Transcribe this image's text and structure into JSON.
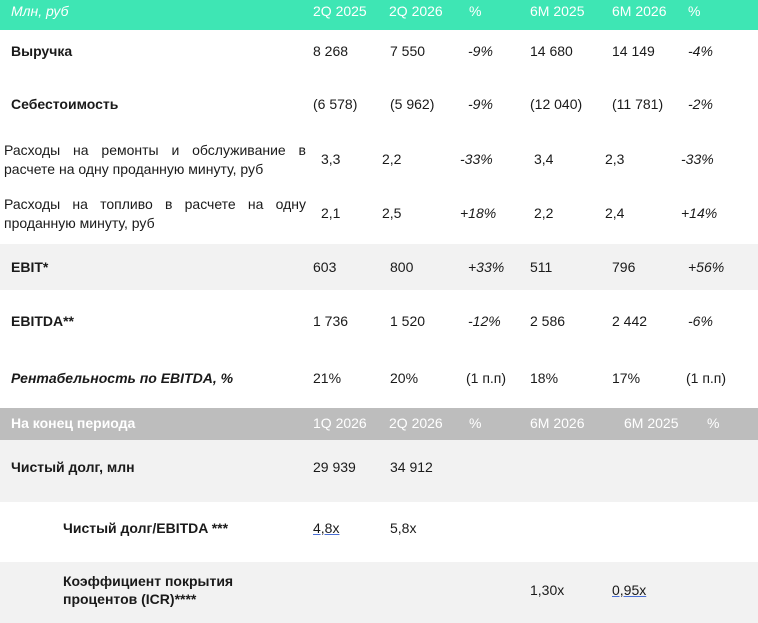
{
  "header1": {
    "label": "Млн, руб",
    "cols": [
      "2Q 2025",
      "2Q 2026",
      "%",
      "6M 2025",
      "6M 2026",
      "%"
    ]
  },
  "rows1": [
    {
      "label": "Выручка",
      "v": [
        "8 268",
        "7 550",
        "-9%",
        "14 680",
        "14 149",
        "-4%"
      ]
    },
    {
      "label": "Себестоимость",
      "v": [
        "(6 578)",
        "(5 962)",
        "-9%",
        "(12 040)",
        "(11 781)",
        "-2%"
      ]
    },
    {
      "label": "Расходы на ремонты и обслуживание в расчете на одну проданную минуту, руб",
      "v": [
        "3,3",
        "2,2",
        "-33%",
        "3,4",
        "2,3",
        "-33%"
      ]
    },
    {
      "label": "Расходы на топливо в расчете на одну проданную минуту, руб",
      "v": [
        "2,1",
        "2,5",
        "+18%",
        "2,2",
        "2,4",
        "+14%"
      ]
    },
    {
      "label": "EBIT*",
      "v": [
        "603",
        "800",
        "+33%",
        "511",
        "796",
        "+56%"
      ]
    },
    {
      "label": "EBITDA**",
      "v": [
        "1 736",
        "1 520",
        "-12%",
        "2 586",
        "2 442",
        "-6%"
      ]
    },
    {
      "label": "Рентабельность по EBITDA, %",
      "v": [
        "21%",
        "20%",
        "(1 п.п)",
        "18%",
        "17%",
        "(1 п.п)"
      ]
    }
  ],
  "header2": {
    "label": "На конец периода",
    "cols": [
      "1Q 2026",
      "2Q 2026",
      "%",
      "6M 2026",
      "6M 2025",
      "%"
    ]
  },
  "rows2": [
    {
      "label": "Чистый долг, млн",
      "v": [
        "29 939",
        "34 912"
      ]
    },
    {
      "label": "Чистый долг/EBITDA ***",
      "v": [
        "4,8x",
        "5,8x"
      ]
    },
    {
      "label_line1": "Коэффициент покрытия",
      "label_line2": "процентов (ICR)****",
      "v": [
        "1,30x",
        "0,95x"
      ]
    }
  ],
  "colors": {
    "header_green": "#3ee6b4",
    "header_grey": "#bdbdbd",
    "row_shade": "#f2f2f2"
  }
}
